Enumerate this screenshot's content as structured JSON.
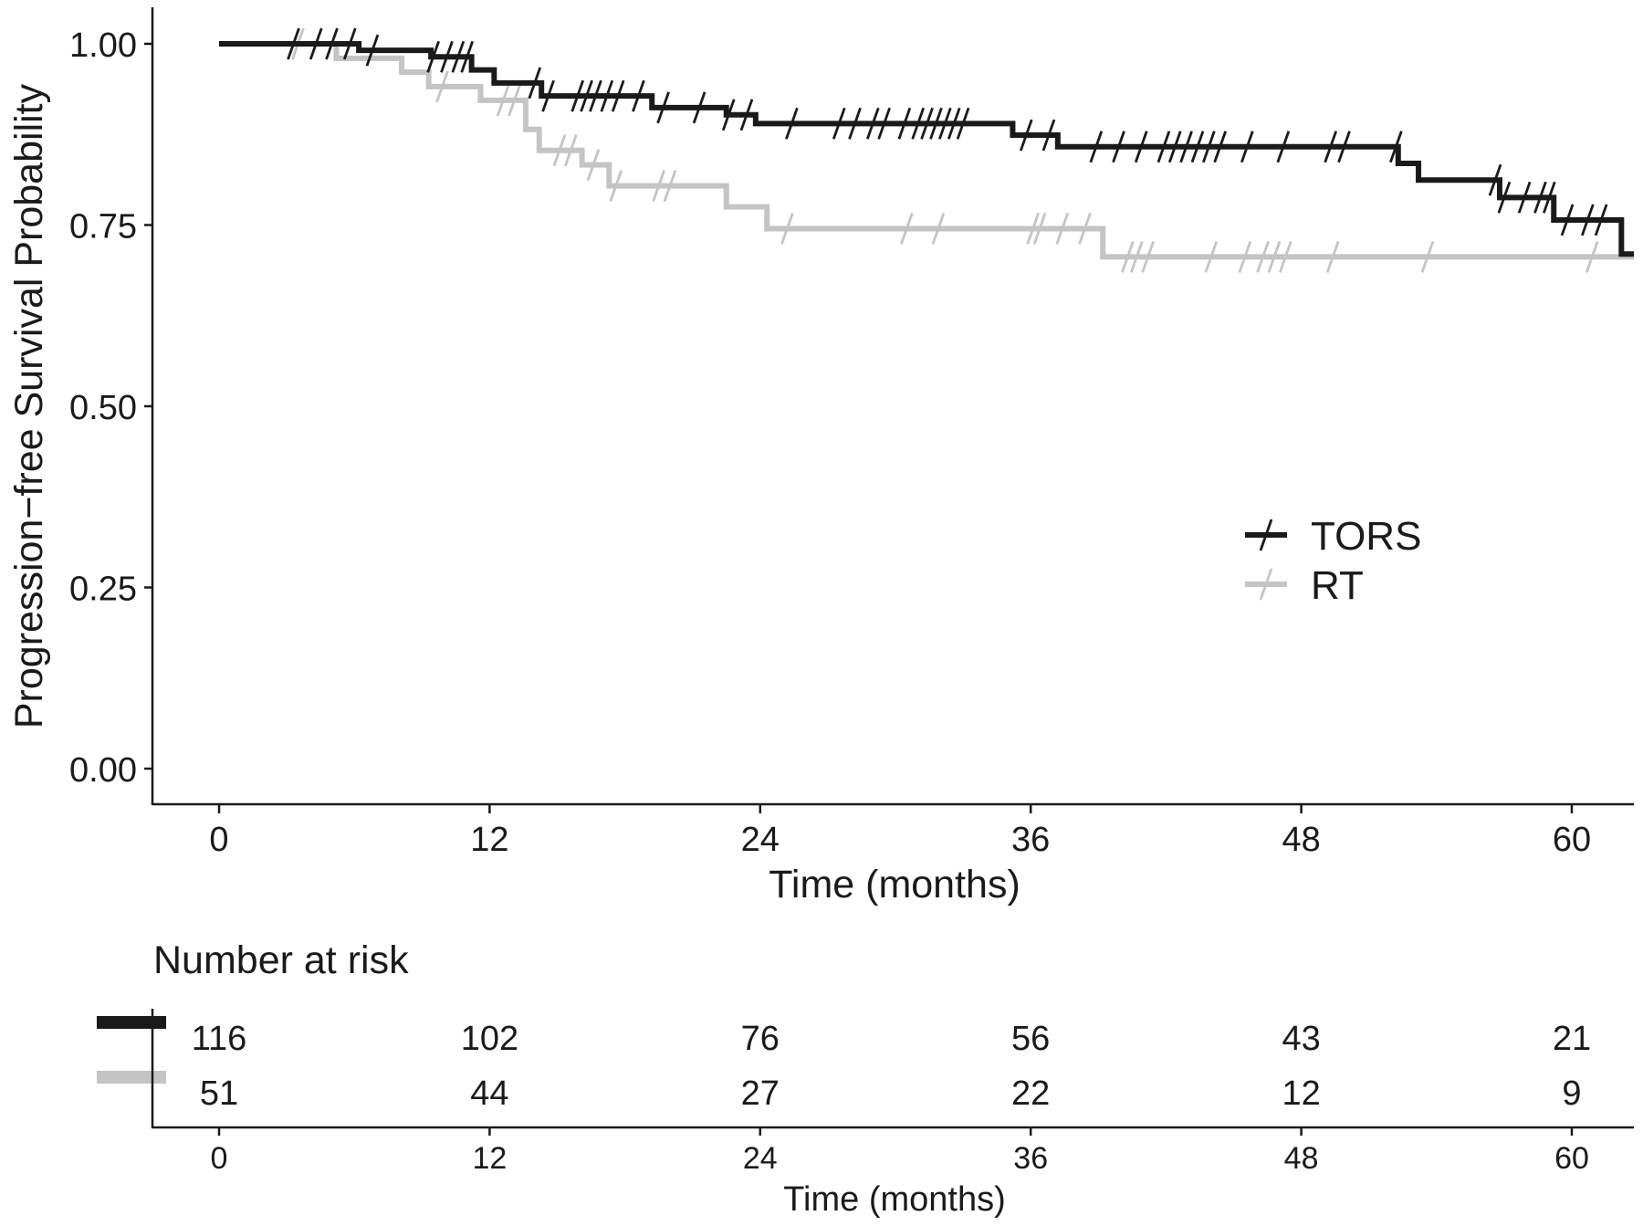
{
  "chart_data": {
    "type": "line",
    "subtype": "kaplan-meier",
    "title": "",
    "xlabel": "Time (months)",
    "ylabel": "Progression−free Survival Probability",
    "xlim": [
      0,
      63
    ],
    "ylim": [
      0,
      1
    ],
    "x_ticks": [
      0,
      12,
      24,
      36,
      48,
      60
    ],
    "x_tick_labels": [
      "0",
      "12",
      "24",
      "36",
      "48",
      "60"
    ],
    "y_ticks": [
      0,
      0.25,
      0.5,
      0.75,
      1
    ],
    "y_tick_labels": [
      "0.00",
      "0.25",
      "0.50",
      "0.75",
      "1.00"
    ],
    "legend_position": "center-right",
    "series": [
      {
        "name": "TORS",
        "color": "#1a1a1a",
        "steps": [
          [
            0,
            1.0
          ],
          [
            6.2,
            0.991
          ],
          [
            9.4,
            0.982
          ],
          [
            11.2,
            0.964
          ],
          [
            12.2,
            0.946
          ],
          [
            14.3,
            0.928
          ],
          [
            19.2,
            0.912
          ],
          [
            22.5,
            0.902
          ],
          [
            23.8,
            0.89
          ],
          [
            35.2,
            0.874
          ],
          [
            37.2,
            0.858
          ],
          [
            52.3,
            0.835
          ],
          [
            53.2,
            0.812
          ],
          [
            56.8,
            0.788
          ],
          [
            59.2,
            0.757
          ],
          [
            62.2,
            0.71
          ]
        ],
        "censor_times": [
          3.3,
          4.3,
          5.0,
          5.8,
          6.8,
          9.5,
          10.1,
          10.6,
          11.0,
          14.0,
          14.6,
          15.9,
          16.3,
          16.7,
          17.2,
          17.7,
          18.6,
          19.7,
          21.3,
          22.6,
          23.4,
          25.4,
          27.5,
          28.2,
          29.0,
          29.5,
          30.4,
          31.0,
          31.4,
          31.8,
          32.2,
          32.6,
          33.0,
          35.8,
          36.8,
          38.9,
          39.9,
          40.9,
          41.9,
          42.4,
          42.9,
          43.4,
          43.9,
          44.4,
          45.6,
          47.2,
          49.3,
          49.9,
          52.2,
          56.6,
          57.0,
          57.9,
          58.6,
          59.0,
          59.8,
          60.7,
          61.3
        ]
      },
      {
        "name": "RT",
        "color": "#c4c4c4",
        "steps": [
          [
            0,
            1.0
          ],
          [
            5.2,
            0.98
          ],
          [
            8.1,
            0.961
          ],
          [
            9.3,
            0.941
          ],
          [
            11.6,
            0.922
          ],
          [
            13.6,
            0.882
          ],
          [
            14.2,
            0.853
          ],
          [
            16.1,
            0.833
          ],
          [
            17.3,
            0.804
          ],
          [
            22.5,
            0.775
          ],
          [
            24.3,
            0.745
          ],
          [
            39.2,
            0.706
          ]
        ],
        "censor_times": [
          3.5,
          9.9,
          12.6,
          13.1,
          15.1,
          15.6,
          16.6,
          17.6,
          19.5,
          20.0,
          25.2,
          30.5,
          31.9,
          36.1,
          36.4,
          37.4,
          38.4,
          40.3,
          40.7,
          41.2,
          44.0,
          45.5,
          46.3,
          46.8,
          47.3,
          49.4,
          53.6,
          60.9
        ]
      }
    ],
    "risk_table": {
      "title": "Number at risk",
      "xlabel": "Time (months)",
      "times": [
        "0",
        "12",
        "24",
        "36",
        "48",
        "60"
      ],
      "rows": [
        {
          "name": "TORS",
          "color": "#1a1a1a",
          "counts": [
            "116",
            "102",
            "76",
            "56",
            "43",
            "21"
          ]
        },
        {
          "name": "RT",
          "color": "#c4c4c4",
          "counts": [
            "51",
            "44",
            "27",
            "22",
            "12",
            "9"
          ]
        }
      ]
    }
  }
}
